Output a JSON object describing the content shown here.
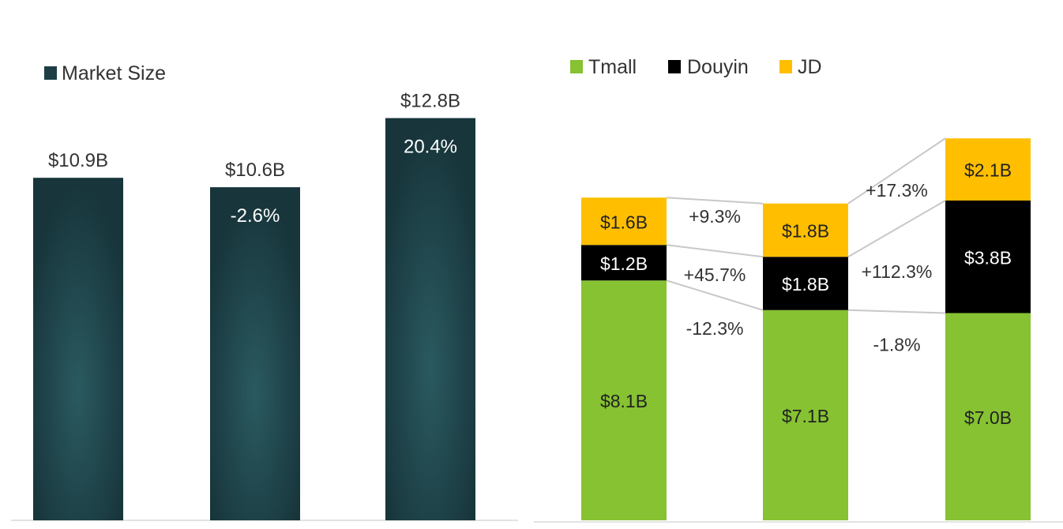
{
  "chart_data": [
    {
      "type": "bar",
      "legend": {
        "position": "top-left",
        "entries": [
          {
            "name": "Market Size",
            "color": "#1e3d44"
          }
        ]
      },
      "categories": [
        "",
        "",
        ""
      ],
      "series": [
        {
          "name": "Market Size",
          "color": "#1e3d44",
          "values": [
            10.9,
            10.6,
            12.8
          ]
        }
      ],
      "value_labels": [
        "$10.9B",
        "$10.6B",
        "$12.8B"
      ],
      "growth_labels": [
        "",
        "-2.6%",
        "20.4%"
      ],
      "ylim": [
        0,
        14.5
      ],
      "grid": false
    },
    {
      "type": "bar",
      "stacked": true,
      "legend": {
        "position": "top-left",
        "entries": [
          {
            "name": "Tmall",
            "color": "#86c232"
          },
          {
            "name": "Douyin",
            "color": "#000000"
          },
          {
            "name": "JD",
            "color": "#ffbf00"
          }
        ]
      },
      "categories": [
        "",
        "",
        ""
      ],
      "series": [
        {
          "name": "Tmall",
          "color": "#86c232",
          "values": [
            8.1,
            7.1,
            7.0
          ],
          "labels": [
            "$8.1B",
            "$7.1B",
            "$7.0B"
          ],
          "text_color": "#222222"
        },
        {
          "name": "Douyin",
          "color": "#000000",
          "values": [
            1.2,
            1.8,
            3.8
          ],
          "labels": [
            "$1.2B",
            "$1.8B",
            "$3.8B"
          ],
          "text_color": "#ffffff"
        },
        {
          "name": "JD",
          "color": "#ffbf00",
          "values": [
            1.6,
            1.8,
            2.1
          ],
          "labels": [
            "$1.6B",
            "$1.8B",
            "$2.1B"
          ],
          "text_color": "#222222"
        }
      ],
      "growth_labels": [
        {
          "Tmall": "-12.3%",
          "Douyin": "+45.7%",
          "JD": "+9.3%"
        },
        {
          "Tmall": "-1.8%",
          "Douyin": "+112.3%",
          "JD": "+17.3%"
        }
      ],
      "ylim": [
        0,
        13
      ],
      "grid": false
    }
  ]
}
